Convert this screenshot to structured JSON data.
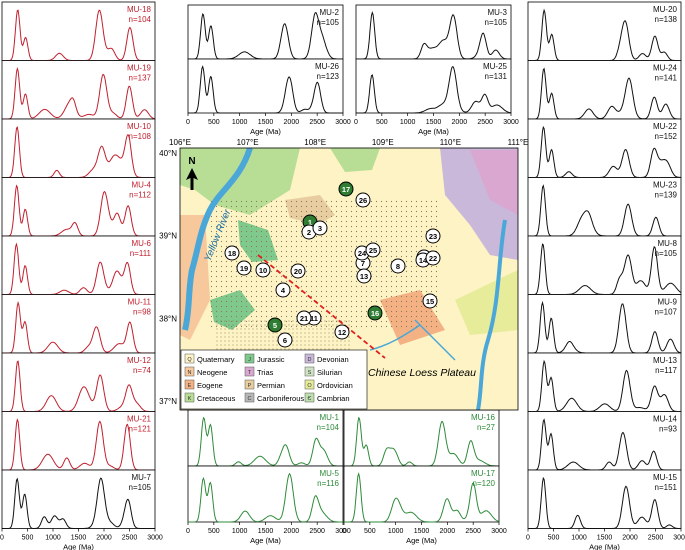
{
  "figure": {
    "age_tick_labels": [
      "0",
      "500",
      "1000",
      "1500",
      "2000",
      "2500",
      "3000"
    ],
    "age_axis_label": "Age (Ma)",
    "colors": {
      "red": "#c0202e",
      "black": "#111111",
      "green": "#2e8b3a"
    }
  },
  "chart_data": [
    {
      "type": "line",
      "panel": "left",
      "color": "red",
      "name": "MU-18",
      "n": "n=104",
      "x_range": [
        0,
        3000
      ]
    },
    {
      "type": "line",
      "panel": "left",
      "color": "red",
      "name": "MU-19",
      "n": "n=137",
      "x_range": [
        0,
        3000
      ]
    },
    {
      "type": "line",
      "panel": "left",
      "color": "red",
      "name": "MU-10",
      "n": "n=108",
      "x_range": [
        0,
        3000
      ]
    },
    {
      "type": "line",
      "panel": "left",
      "color": "red",
      "name": "MU-4",
      "n": "n=112",
      "x_range": [
        0,
        3000
      ]
    },
    {
      "type": "line",
      "panel": "left",
      "color": "red",
      "name": "MU-6",
      "n": "n=111",
      "x_range": [
        0,
        3000
      ]
    },
    {
      "type": "line",
      "panel": "left",
      "color": "red",
      "name": "MU-11",
      "n": "n=98",
      "x_range": [
        0,
        3000
      ]
    },
    {
      "type": "line",
      "panel": "left",
      "color": "red",
      "name": "MU-12",
      "n": "n=74",
      "x_range": [
        0,
        3000
      ]
    },
    {
      "type": "line",
      "panel": "left",
      "color": "red",
      "name": "MU-21",
      "n": "n=121",
      "x_range": [
        0,
        3000
      ]
    },
    {
      "type": "line",
      "panel": "left",
      "color": "black",
      "name": "MU-7",
      "n": "n=105",
      "x_range": [
        0,
        3000
      ]
    },
    {
      "type": "line",
      "panel": "top",
      "color": "black",
      "name": "MU-2",
      "n": "n=105",
      "x_range": [
        0,
        3000
      ]
    },
    {
      "type": "line",
      "panel": "top",
      "color": "black",
      "name": "MU-26",
      "n": "n=123",
      "x_range": [
        0,
        3000
      ]
    },
    {
      "type": "line",
      "panel": "top",
      "color": "black",
      "name": "MU-3",
      "n": "n=105",
      "x_range": [
        0,
        3000
      ]
    },
    {
      "type": "line",
      "panel": "top",
      "color": "black",
      "name": "MU-25",
      "n": "n=131",
      "x_range": [
        0,
        3000
      ]
    },
    {
      "type": "line",
      "panel": "bottom",
      "color": "green",
      "name": "MU-1",
      "n": "n=104",
      "x_range": [
        0,
        3000
      ]
    },
    {
      "type": "line",
      "panel": "bottom",
      "color": "green",
      "name": "MU-5",
      "n": "n=116",
      "x_range": [
        0,
        3000
      ]
    },
    {
      "type": "line",
      "panel": "bottom",
      "color": "green",
      "name": "MU-16",
      "n": "n=27",
      "x_range": [
        0,
        3000
      ]
    },
    {
      "type": "line",
      "panel": "bottom",
      "color": "green",
      "name": "MU-17",
      "n": "n=120",
      "x_range": [
        0,
        3000
      ]
    },
    {
      "type": "line",
      "panel": "right",
      "color": "black",
      "name": "MU-20",
      "n": "n=138",
      "x_range": [
        0,
        3000
      ]
    },
    {
      "type": "line",
      "panel": "right",
      "color": "black",
      "name": "MU-24",
      "n": "n=141",
      "x_range": [
        0,
        3000
      ]
    },
    {
      "type": "line",
      "panel": "right",
      "color": "black",
      "name": "MU-22",
      "n": "n=152",
      "x_range": [
        0,
        3000
      ]
    },
    {
      "type": "line",
      "panel": "right",
      "color": "black",
      "name": "MU-23",
      "n": "n=139",
      "x_range": [
        0,
        3000
      ]
    },
    {
      "type": "line",
      "panel": "right",
      "color": "black",
      "name": "MU-8",
      "n": "n=105",
      "x_range": [
        0,
        3000
      ]
    },
    {
      "type": "line",
      "panel": "right",
      "color": "black",
      "name": "MU-9",
      "n": "n=107",
      "x_range": [
        0,
        3000
      ]
    },
    {
      "type": "line",
      "panel": "right",
      "color": "black",
      "name": "MU-13",
      "n": "n=117",
      "x_range": [
        0,
        3000
      ]
    },
    {
      "type": "line",
      "panel": "right",
      "color": "black",
      "name": "MU-14",
      "n": "n=93",
      "x_range": [
        0,
        3000
      ]
    },
    {
      "type": "line",
      "panel": "right",
      "color": "black",
      "name": "MU-15",
      "n": "n=151",
      "x_range": [
        0,
        3000
      ]
    }
  ],
  "map": {
    "lon_labels": [
      "106°E",
      "107°E",
      "108°E",
      "109°E",
      "110°E",
      "111°E"
    ],
    "lat_labels": [
      "40°N",
      "39°N",
      "38°N",
      "37°N"
    ],
    "north_label": "N",
    "river_label": "Yellow River",
    "plateau_label": "Chinese Loess Plateau",
    "samples": [
      {
        "id": "1",
        "green": true
      },
      {
        "id": "2",
        "green": false
      },
      {
        "id": "3",
        "green": false
      },
      {
        "id": "4",
        "green": false
      },
      {
        "id": "5",
        "green": true
      },
      {
        "id": "6",
        "green": false
      },
      {
        "id": "7",
        "green": false
      },
      {
        "id": "8",
        "green": false
      },
      {
        "id": "9",
        "green": false
      },
      {
        "id": "10",
        "green": false
      },
      {
        "id": "11",
        "green": false
      },
      {
        "id": "12",
        "green": false
      },
      {
        "id": "13",
        "green": false
      },
      {
        "id": "14",
        "green": false
      },
      {
        "id": "15",
        "green": false
      },
      {
        "id": "16",
        "green": true
      },
      {
        "id": "17",
        "green": true
      },
      {
        "id": "18",
        "green": false
      },
      {
        "id": "19",
        "green": false
      },
      {
        "id": "20",
        "green": false
      },
      {
        "id": "21",
        "green": false
      },
      {
        "id": "22",
        "green": false
      },
      {
        "id": "23",
        "green": false
      },
      {
        "id": "24",
        "green": false
      },
      {
        "id": "25",
        "green": false
      },
      {
        "id": "26",
        "green": false
      }
    ],
    "legend": [
      {
        "code": "Q",
        "label": "Quaternary",
        "color": "#fdf3c4"
      },
      {
        "code": "J",
        "label": "Jurassic",
        "color": "#7fc98d"
      },
      {
        "code": "D",
        "label": "Devonian",
        "color": "#c9b8d9"
      },
      {
        "code": "N",
        "label": "Neogene",
        "color": "#f6c89b"
      },
      {
        "code": "T",
        "label": "Trias",
        "color": "#d9a7cf"
      },
      {
        "code": "S",
        "label": "Silurian",
        "color": "#cfe3c4"
      },
      {
        "code": "E",
        "label": "Eogene",
        "color": "#f4b183"
      },
      {
        "code": "P",
        "label": "Permian",
        "color": "#e8cda0"
      },
      {
        "code": "O",
        "label": "Ordovician",
        "color": "#e6ec9a"
      },
      {
        "code": "K",
        "label": "Cretaceous",
        "color": "#b8de95"
      },
      {
        "code": "C",
        "label": "Carboniferous",
        "color": "#b7b7b7"
      },
      {
        "code": "Є",
        "label": "Cambrian",
        "color": "#bfe0ae"
      }
    ]
  }
}
